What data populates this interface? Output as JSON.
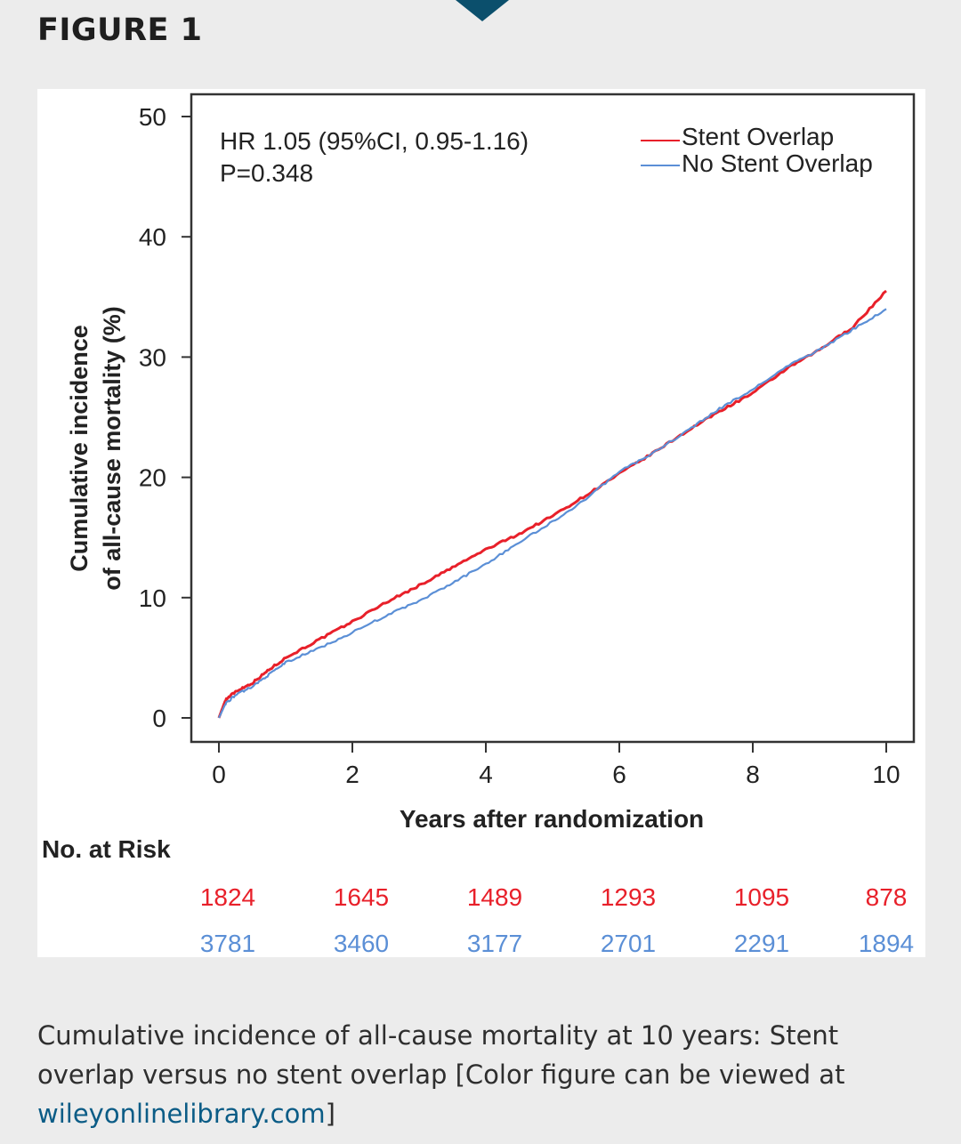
{
  "figure_label": "FIGURE 1",
  "caption": {
    "text": "Cumulative incidence of all-cause mortality at 10 years: Stent overlap versus no stent overlap [Color figure can be viewed at ",
    "link": "wileyonlinelibrary.com",
    "close": "]"
  },
  "colors": {
    "stent": "#e8202a",
    "no_stent": "#5b8fd6",
    "nav_marker": "#0b4f6c"
  },
  "chart_data": {
    "type": "line",
    "xlabel": "Years after randomization",
    "ylabel_line1": "Cumulative incidence",
    "ylabel_line2": "of all-cause mortality  (%)",
    "xlim": [
      0,
      10
    ],
    "ylim": [
      0,
      50
    ],
    "xticks": [
      0,
      2,
      4,
      6,
      8,
      10
    ],
    "yticks": [
      0,
      10,
      20,
      30,
      40,
      50
    ],
    "annotation_line1": "HR 1.05 (95%CI, 0.95-1.16)",
    "annotation_line2": "P=0.348",
    "legend_position": "top-right",
    "series": [
      {
        "name": "Stent Overlap",
        "color": "#e8202a",
        "x": [
          0,
          0.1,
          0.25,
          0.5,
          0.75,
          1.0,
          1.5,
          2.0,
          2.5,
          3.0,
          3.5,
          4.0,
          4.5,
          5.0,
          5.5,
          6.0,
          6.5,
          7.0,
          7.5,
          8.0,
          8.5,
          9.0,
          9.5,
          10.0
        ],
        "values": [
          0,
          1.5,
          2.2,
          2.9,
          4.0,
          5.0,
          6.5,
          8.0,
          9.6,
          11.0,
          12.5,
          14.0,
          15.3,
          16.8,
          18.5,
          20.3,
          22.0,
          23.8,
          25.5,
          27.0,
          29.0,
          30.6,
          32.5,
          35.5
        ]
      },
      {
        "name": "No Stent Overlap",
        "color": "#5b8fd6",
        "x": [
          0,
          0.1,
          0.25,
          0.5,
          0.75,
          1.0,
          1.5,
          2.0,
          2.5,
          3.0,
          3.5,
          4.0,
          4.5,
          5.0,
          5.5,
          6.0,
          6.5,
          7.0,
          7.5,
          8.0,
          8.5,
          9.0,
          9.5,
          10.0
        ],
        "values": [
          0,
          1.2,
          1.9,
          2.6,
          3.6,
          4.6,
          5.8,
          7.1,
          8.5,
          9.7,
          11.2,
          12.8,
          14.6,
          16.3,
          18.2,
          20.5,
          22.0,
          23.8,
          25.7,
          27.3,
          29.2,
          30.6,
          32.3,
          34.0
        ]
      }
    ],
    "risk_table": {
      "label": "No. at Risk",
      "rows": [
        {
          "name": "Stent Overlap",
          "color": "#e8202a",
          "values": [
            "1824",
            "1645",
            "1489",
            "1293",
            "1095",
            "878"
          ]
        },
        {
          "name": "No Stent Overlap",
          "color": "#5b8fd6",
          "values": [
            "3781",
            "3460",
            "3177",
            "2701",
            "2291",
            "1894"
          ]
        }
      ]
    }
  }
}
